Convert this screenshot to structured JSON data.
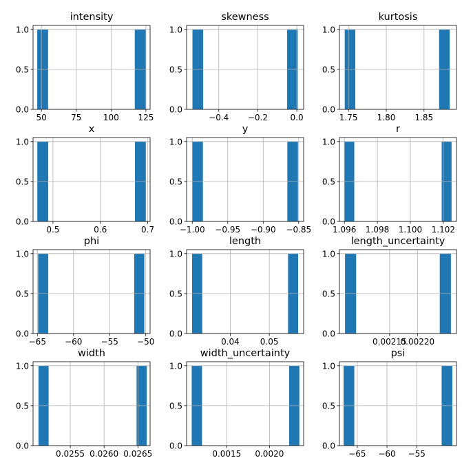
{
  "chart_data": [
    {
      "type": "bar",
      "title": "intensity",
      "xlim": [
        44,
        128
      ],
      "ylim": [
        0,
        1.05
      ],
      "xticks": [
        50,
        75,
        100,
        125
      ],
      "xtick_labels": [
        "50",
        "75",
        "100",
        "125"
      ],
      "yticks": [
        0,
        0.5,
        1.0
      ],
      "ytick_labels": [
        "0.0",
        "0.5",
        "1.0"
      ],
      "grid": true,
      "bins": [
        {
          "x0": 47.0,
          "x1": 54.8,
          "count": 1
        },
        {
          "x0": 117.0,
          "x1": 124.8,
          "count": 1
        }
      ]
    },
    {
      "type": "bar",
      "title": "skewness",
      "xlim": [
        -0.565,
        0.035
      ],
      "ylim": [
        0,
        1.05
      ],
      "xticks": [
        -0.4,
        -0.2,
        0.0
      ],
      "xtick_labels": [
        "−0.4",
        "−0.2",
        "0.0"
      ],
      "yticks": [
        0,
        0.5,
        1.0
      ],
      "ytick_labels": [
        "0.0",
        "0.5",
        "1.0"
      ],
      "grid": true,
      "bins": [
        {
          "x0": -0.535,
          "x1": -0.48,
          "count": 1
        },
        {
          "x0": -0.05,
          "x1": 0.005,
          "count": 1
        }
      ]
    },
    {
      "type": "bar",
      "title": "kurtosis",
      "xlim": [
        1.738,
        1.893
      ],
      "ylim": [
        0,
        1.05
      ],
      "xticks": [
        1.75,
        1.8,
        1.85
      ],
      "xtick_labels": [
        "1.75",
        "1.80",
        "1.85"
      ],
      "yticks": [
        0,
        0.5,
        1.0
      ],
      "ytick_labels": [
        "0.0",
        "0.5",
        "1.0"
      ],
      "grid": true,
      "bins": [
        {
          "x0": 1.745,
          "x1": 1.759,
          "count": 1
        },
        {
          "x0": 1.87,
          "x1": 1.884,
          "count": 1
        }
      ]
    },
    {
      "type": "bar",
      "title": "x",
      "xlim": [
        0.458,
        0.705
      ],
      "ylim": [
        0,
        1.05
      ],
      "xticks": [
        0.5,
        0.6,
        0.7
      ],
      "xtick_labels": [
        "0.5",
        "0.6",
        "0.7"
      ],
      "yticks": [
        0,
        0.5,
        1.0
      ],
      "ytick_labels": [
        "0.0",
        "0.5",
        "1.0"
      ],
      "grid": true,
      "bins": [
        {
          "x0": 0.467,
          "x1": 0.49,
          "count": 1
        },
        {
          "x0": 0.673,
          "x1": 0.696,
          "count": 1
        }
      ]
    },
    {
      "type": "bar",
      "title": "y",
      "xlim": [
        -1.008,
        -0.843
      ],
      "ylim": [
        0,
        1.05
      ],
      "xticks": [
        -1.0,
        -0.95,
        -0.9,
        -0.85
      ],
      "xtick_labels": [
        "−1.00",
        "−0.95",
        "−0.90",
        "−0.85"
      ],
      "yticks": [
        0,
        0.5,
        1.0
      ],
      "ytick_labels": [
        "0.0",
        "0.5",
        "1.0"
      ],
      "grid": true,
      "bins": [
        {
          "x0": -1.0,
          "x1": -0.985,
          "count": 1
        },
        {
          "x0": -0.866,
          "x1": -0.851,
          "count": 1
        }
      ]
    },
    {
      "type": "bar",
      "title": "r",
      "xlim": [
        1.0957,
        1.1028
      ],
      "ylim": [
        0,
        1.05
      ],
      "xticks": [
        1.096,
        1.098,
        1.1,
        1.102
      ],
      "xtick_labels": [
        "1.096",
        "1.098",
        "1.100",
        "1.102"
      ],
      "yticks": [
        0,
        0.5,
        1.0
      ],
      "ytick_labels": [
        "0.0",
        "0.5",
        "1.0"
      ],
      "grid": true,
      "bins": [
        {
          "x0": 1.096,
          "x1": 1.0966,
          "count": 1
        },
        {
          "x0": 1.1019,
          "x1": 1.1025,
          "count": 1
        }
      ]
    },
    {
      "type": "bar",
      "title": "phi",
      "xlim": [
        -65.6,
        -49.4
      ],
      "ylim": [
        0,
        1.05
      ],
      "xticks": [
        -65,
        -60,
        -55,
        -50
      ],
      "xtick_labels": [
        "−65",
        "−60",
        "−55",
        "−50"
      ],
      "yticks": [
        0,
        0.5,
        1.0
      ],
      "ytick_labels": [
        "0.0",
        "0.5",
        "1.0"
      ],
      "grid": true,
      "bins": [
        {
          "x0": -64.9,
          "x1": -63.5,
          "count": 1
        },
        {
          "x0": -51.6,
          "x1": -50.2,
          "count": 1
        }
      ]
    },
    {
      "type": "bar",
      "title": "length",
      "xlim": [
        0.0288,
        0.0588
      ],
      "ylim": [
        0,
        1.05
      ],
      "xticks": [
        0.04,
        0.05
      ],
      "xtick_labels": [
        "0.04",
        "0.05"
      ],
      "yticks": [
        0,
        0.5,
        1.0
      ],
      "ytick_labels": [
        "0.0",
        "0.5",
        "1.0"
      ],
      "grid": true,
      "bins": [
        {
          "x0": 0.0302,
          "x1": 0.0328,
          "count": 1
        },
        {
          "x0": 0.0548,
          "x1": 0.0574,
          "count": 1
        }
      ]
    },
    {
      "type": "bar",
      "title": "length_uncertainty",
      "xlim": [
        0.00206,
        0.00227
      ],
      "ylim": [
        0,
        1.05
      ],
      "xticks": [
        0.00215,
        0.0022
      ],
      "xtick_labels": [
        "0.00215",
        "0.00220"
      ],
      "yticks": [
        0,
        0.5,
        1.0
      ],
      "ytick_labels": [
        "0.0",
        "0.5",
        "1.0"
      ],
      "grid": true,
      "bins": [
        {
          "x0": 0.00207,
          "x1": 0.00209,
          "count": 1
        },
        {
          "x0": 0.00224,
          "x1": 0.00226,
          "count": 1
        }
      ]
    },
    {
      "type": "bar",
      "title": "width",
      "xlim": [
        0.02495,
        0.02668
      ],
      "ylim": [
        0,
        1.05
      ],
      "xticks": [
        0.0255,
        0.026,
        0.0265
      ],
      "xtick_labels": [
        "0.0255",
        "0.0260",
        "0.0265"
      ],
      "yticks": [
        0,
        0.5,
        1.0
      ],
      "ytick_labels": [
        "0.0",
        "0.5",
        "1.0"
      ],
      "grid": true,
      "bins": [
        {
          "x0": 0.02503,
          "x1": 0.02518,
          "count": 1
        },
        {
          "x0": 0.02648,
          "x1": 0.02663,
          "count": 1
        }
      ]
    },
    {
      "type": "bar",
      "title": "width_uncertainty",
      "xlim": [
        0.00103,
        0.0024
      ],
      "ylim": [
        0,
        1.05
      ],
      "xticks": [
        0.0015,
        0.002
      ],
      "xtick_labels": [
        "0.0015",
        "0.0020"
      ],
      "yticks": [
        0,
        0.5,
        1.0
      ],
      "ytick_labels": [
        "0.0",
        "0.5",
        "1.0"
      ],
      "grid": true,
      "bins": [
        {
          "x0": 0.00109,
          "x1": 0.00121,
          "count": 1
        },
        {
          "x0": 0.00223,
          "x1": 0.00235,
          "count": 1
        }
      ]
    },
    {
      "type": "bar",
      "title": "psi",
      "xlim": [
        -68.0,
        -48.3
      ],
      "ylim": [
        0,
        1.05
      ],
      "xticks": [
        -65,
        -60,
        -55
      ],
      "xtick_labels": [
        "−65",
        "−60",
        "−55"
      ],
      "yticks": [
        0,
        0.5,
        1.0
      ],
      "ytick_labels": [
        "0.0",
        "0.5",
        "1.0"
      ],
      "grid": true,
      "bins": [
        {
          "x0": -67.3,
          "x1": -65.5,
          "count": 1
        },
        {
          "x0": -50.8,
          "x1": -49.0,
          "count": 1
        }
      ]
    }
  ],
  "colors": {
    "bar": "#1f77b4",
    "grid": "#b0b0b0",
    "axis": "#000000"
  }
}
